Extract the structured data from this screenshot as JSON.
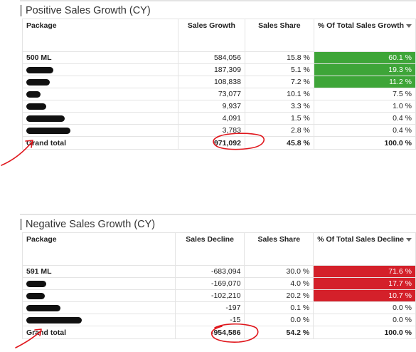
{
  "positive": {
    "title": "Positive Sales Growth (CY)",
    "columns": [
      "Package",
      "Sales Growth",
      "Sales Share",
      "% Of Total Sales Growth"
    ],
    "rows": [
      {
        "package": "500 ML",
        "value": "584,056",
        "share": "15.8 %",
        "pct": "60.1 %"
      },
      {
        "package": "",
        "value": "187,309",
        "share": "5.1 %",
        "pct": "19.3 %"
      },
      {
        "package": "",
        "value": "108,838",
        "share": "7.2 %",
        "pct": "11.2 %"
      },
      {
        "package": "",
        "value": "73,077",
        "share": "10.1 %",
        "pct": "7.5 %"
      },
      {
        "package": "",
        "value": "9,937",
        "share": "3.3 %",
        "pct": "1.0 %"
      },
      {
        "package": "",
        "value": "4,091",
        "share": "1.5 %",
        "pct": "0.4 %"
      },
      {
        "package": "",
        "value": "3,783",
        "share": "2.8 %",
        "pct": "0.4 %"
      }
    ],
    "total": {
      "label": "Grand total",
      "value": "971,092",
      "share": "45.8 %",
      "pct": "100.0 %"
    }
  },
  "negative": {
    "title": "Negative Sales Growth (CY)",
    "columns": [
      "Package",
      "Sales Decline",
      "Sales Share",
      "% Of Total Sales Decline"
    ],
    "rows": [
      {
        "package": "591 ML",
        "value": "-683,094",
        "share": "30.0 %",
        "pct": "71.6 %"
      },
      {
        "package": "",
        "value": "-169,070",
        "share": "4.0 %",
        "pct": "17.7 %"
      },
      {
        "package": "",
        "value": "-102,210",
        "share": "20.2 %",
        "pct": "10.7 %"
      },
      {
        "package": "",
        "value": "-197",
        "share": "0.1 %",
        "pct": "0.0 %"
      },
      {
        "package": "",
        "value": "-15",
        "share": "0.0 %",
        "pct": "0.0 %"
      }
    ],
    "total": {
      "label": "Grand total",
      "value": "-954,586",
      "share": "54.2 %",
      "pct": "100.0 %"
    }
  },
  "colors": {
    "highlight_green": "#3ea538",
    "highlight_red": "#d4202a",
    "annotation": "#e0161c"
  },
  "icons": [
    "sort-descending-icon",
    "redaction-mark",
    "annotation-arrow",
    "annotation-circle"
  ]
}
